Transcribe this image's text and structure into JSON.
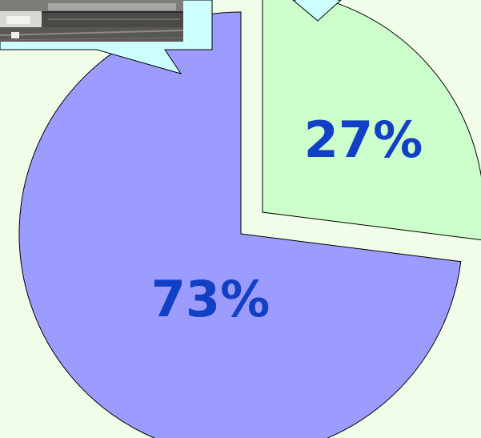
{
  "chart_data": {
    "type": "pie",
    "title": "",
    "slices": [
      {
        "value": 73,
        "label": "73%",
        "color": "#9c9cff"
      },
      {
        "value": 27,
        "label": "27%",
        "color": "#ccffcc",
        "exploded": true
      }
    ],
    "label_color": "#1240c4",
    "callout_color": "#ccffff",
    "outline_color": "#000000",
    "background": "#f1fde8"
  }
}
